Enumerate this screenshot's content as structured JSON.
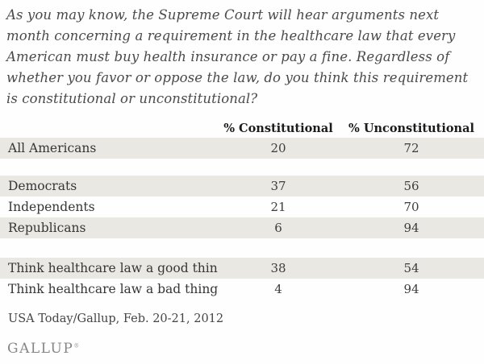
{
  "question": "As you may know, the Supreme Court will hear arguments next month concerning a requirement in the healthcare law that every American must buy health insurance or pay a fine. Regardless of whether you favor or oppose the law, do you think this requirement is constitutional or unconstitutional?",
  "table": {
    "columns": [
      "% Constitutional",
      "% Unconstitutional"
    ],
    "rows": [
      {
        "label": "All Americans",
        "constitutional": "20",
        "unconstitutional": "72",
        "shaded": true,
        "gap": ""
      },
      {
        "label": "Democrats",
        "constitutional": "37",
        "unconstitutional": "56",
        "shaded": true,
        "gap": "gap-democrats"
      },
      {
        "label": "Independents",
        "constitutional": "21",
        "unconstitutional": "70",
        "shaded": false,
        "gap": ""
      },
      {
        "label": "Republicans",
        "constitutional": "6",
        "unconstitutional": "94",
        "shaded": true,
        "gap": ""
      },
      {
        "label": "Think healthcare law a good thing",
        "constitutional": "38",
        "unconstitutional": "54",
        "shaded": true,
        "gap": "gap-goodthing"
      },
      {
        "label": "Think healthcare law a bad thing",
        "constitutional": "4",
        "unconstitutional": "94",
        "shaded": false,
        "gap": ""
      }
    ]
  },
  "source": "USA Today/Gallup, Feb. 20-21, 2012",
  "logo": {
    "text": "GALLUP",
    "mark": "®"
  },
  "colors": {
    "row_shade": "#e9e8e3",
    "question_text": "#4a4a4a",
    "header_text": "#1b1b1b",
    "body_text": "#363636",
    "logo_text": "#85858a",
    "background": "#fefefe"
  },
  "chart_data": {
    "type": "table",
    "title": "As you may know, the Supreme Court will hear arguments next month concerning a requirement in the healthcare law that every American must buy health insurance or pay a fine. Regardless of whether you favor or oppose the law, do you think this requirement is constitutional or unconstitutional?",
    "categories": [
      "All Americans",
      "Democrats",
      "Independents",
      "Republicans",
      "Think healthcare law a good thing",
      "Think healthcare law a bad thing"
    ],
    "series": [
      {
        "name": "% Constitutional",
        "values": [
          20,
          37,
          21,
          6,
          38,
          4
        ]
      },
      {
        "name": "% Unconstitutional",
        "values": [
          72,
          56,
          70,
          94,
          54,
          94
        ]
      }
    ],
    "source": "USA Today/Gallup, Feb. 20-21, 2012",
    "legend_position": "top",
    "grid": false
  }
}
